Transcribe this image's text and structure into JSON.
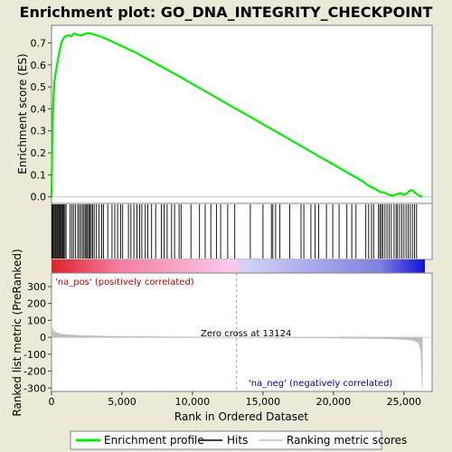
{
  "chart_data": {
    "type": "line",
    "title": "Enrichment plot: GO_DNA_INTEGRITY_CHECKPOINT",
    "xlabel": "Rank in Ordered Dataset",
    "ylabel_top": "Enrichment score (ES)",
    "ylabel_bottom": "Ranked list metric (PreRanked)",
    "xlim": [
      0,
      27000
    ],
    "x_ticks": [
      0,
      5000,
      10000,
      15000,
      20000,
      25000
    ],
    "x_tick_labels": [
      "0",
      "5,000",
      "10,000",
      "15,000",
      "20,000",
      "25,000"
    ],
    "es_ylim": [
      -0.03,
      0.78
    ],
    "es_ticks": [
      0.0,
      0.1,
      0.2,
      0.3,
      0.4,
      0.5,
      0.6,
      0.7
    ],
    "es_tick_labels": [
      "0.0",
      "0.1",
      "0.2",
      "0.3",
      "0.4",
      "0.5",
      "0.6",
      "0.7"
    ],
    "metric_ylim": [
      -320,
      380
    ],
    "metric_ticks": [
      300,
      200,
      100,
      0,
      -100,
      -200,
      -300
    ],
    "metric_tick_labels": [
      "300",
      "200",
      "100",
      "0",
      "-100",
      "-200",
      "-300"
    ],
    "series": [
      {
        "name": "Enrichment profile",
        "color": "#00ee00",
        "x": [
          0,
          50,
          100,
          150,
          200,
          300,
          400,
          500,
          600,
          700,
          800,
          900,
          1000,
          1200,
          1400,
          1600,
          1800,
          2000,
          2200,
          2400,
          2600,
          2800,
          3000,
          3200,
          3500,
          4000,
          5000,
          6000,
          7000,
          8000,
          9000,
          10000,
          11000,
          12000,
          13000,
          14000,
          15000,
          16000,
          17000,
          18000,
          19000,
          20000,
          21000,
          22000,
          22500,
          23000,
          23300,
          23600,
          23900,
          24200,
          24500,
          24800,
          25000,
          25200,
          25400,
          25600,
          25800,
          26000,
          26300
        ],
        "y": [
          0.0,
          0.25,
          0.38,
          0.46,
          0.52,
          0.57,
          0.6,
          0.64,
          0.67,
          0.7,
          0.715,
          0.725,
          0.73,
          0.735,
          0.73,
          0.742,
          0.738,
          0.735,
          0.735,
          0.742,
          0.745,
          0.742,
          0.738,
          0.735,
          0.728,
          0.715,
          0.685,
          0.655,
          0.62,
          0.585,
          0.55,
          0.513,
          0.477,
          0.44,
          0.403,
          0.367,
          0.33,
          0.294,
          0.257,
          0.22,
          0.183,
          0.147,
          0.11,
          0.073,
          0.05,
          0.035,
          0.022,
          0.02,
          0.01,
          0.005,
          0.012,
          0.017,
          0.008,
          0.015,
          0.027,
          0.03,
          0.018,
          0.008,
          0.0
        ]
      },
      {
        "name": "Hits",
        "color": "#000000",
        "hit_ranks": [
          30,
          90,
          150,
          210,
          280,
          340,
          410,
          470,
          540,
          600,
          660,
          730,
          800,
          870,
          950,
          1030,
          1320,
          1450,
          1560,
          1690,
          1860,
          1970,
          2080,
          2200,
          2300,
          2390,
          2490,
          2560,
          2650,
          2730,
          2820,
          2910,
          3030,
          3190,
          3360,
          3560,
          3690,
          3990,
          4290,
          4490,
          4690,
          4900,
          5050,
          5460,
          5630,
          5840,
          6060,
          6250,
          6410,
          6650,
          6830,
          7100,
          7390,
          7800,
          7990,
          8200,
          8520,
          8730,
          9050,
          9190,
          9890,
          10500,
          10900,
          11300,
          11700,
          12000,
          12500,
          13000,
          14100,
          15000,
          15600,
          15700,
          15900,
          16200,
          16900,
          17700,
          17900,
          18400,
          18700,
          18950,
          19500,
          19950,
          20400,
          20950,
          21300,
          21600,
          22300,
          22500,
          22700,
          22850,
          23200,
          23300,
          23400,
          23500,
          23650,
          23800,
          23950,
          24100,
          24300,
          24450,
          24550,
          24700,
          24850,
          25000,
          25150,
          25300,
          25450,
          25600,
          25750,
          25900
        ]
      },
      {
        "name": "Ranking metric scores",
        "color": "#bebebe",
        "x": [
          0,
          30,
          100,
          300,
          600,
          1000,
          2000,
          4000,
          8000,
          13124,
          18000,
          22000,
          24000,
          25000,
          25500,
          25800,
          26000,
          26100,
          26200,
          26250,
          26300
        ],
        "y": [
          100,
          60,
          40,
          28,
          20,
          15,
          10,
          5,
          2,
          0,
          -2,
          -5,
          -8,
          -12,
          -16,
          -22,
          -30,
          -45,
          -80,
          -150,
          -300
        ]
      }
    ],
    "zero_cross_rank": 13124,
    "annotations": {
      "pos_label": "'na_pos' (positively correlated)",
      "neg_label": "'na_neg' (negatively correlated)",
      "zero_cross_label": "Zero cross at 13124"
    },
    "legend": {
      "placement": "bottom",
      "items": [
        "Enrichment profile",
        "Hits",
        "Ranking metric scores"
      ]
    },
    "colors": {
      "background": "#ece9d8",
      "plot_background": "#ffffff",
      "es_line": "#00ee00",
      "hit_line": "#000000",
      "metric_fill": "#bebebe",
      "pos_label": "#c00000",
      "neg_label": "#0000aa",
      "gradient": [
        "#e0202a",
        "#f47ea0",
        "#ffc8ec",
        "#d2d2f8",
        "#8080e0",
        "#1010d8"
      ]
    }
  }
}
